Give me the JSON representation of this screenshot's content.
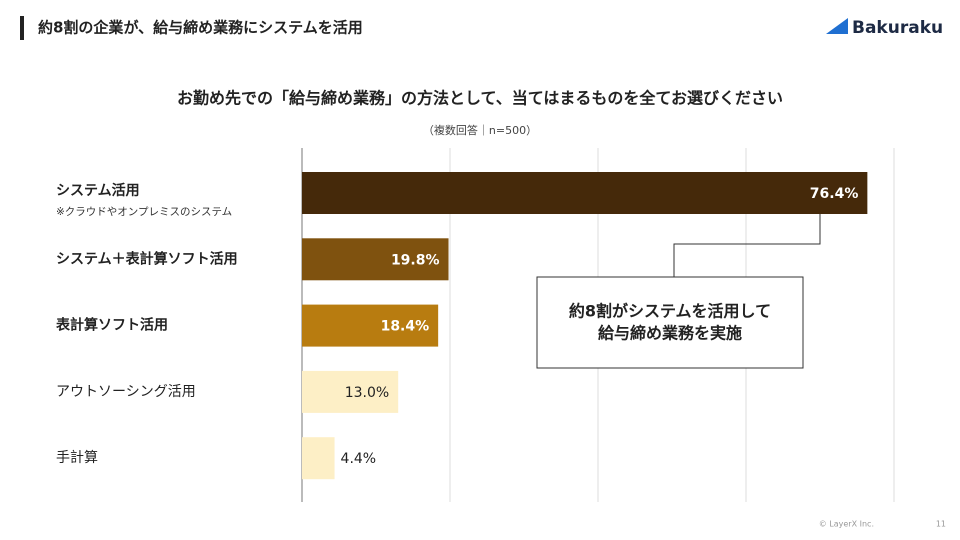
{
  "header": {
    "title": "約8割の企業が、給与締め業務にシステムを活用",
    "logo": "Bakuraku"
  },
  "chart_data": {
    "type": "bar",
    "orientation": "horizontal",
    "title": "お勤め先での「給与締め業務」の方法として、当てはまるものを全てお選びください",
    "subtitle": "（複数回答｜n=500）",
    "categories": [
      "システム活用",
      "システム＋表計算ソフト活用",
      "表計算ソフト活用",
      "アウトソーシング活用",
      "手計算"
    ],
    "category_note": "※クラウドやオンプレミスのシステム",
    "values": [
      76.4,
      19.8,
      18.4,
      13.0,
      4.4
    ],
    "value_labels": [
      "76.4%",
      "19.8%",
      "18.4%",
      "13.0%",
      "4.4%"
    ],
    "colors": [
      "#45290a",
      "#7f520f",
      "#b87c10",
      "#fdefc6",
      "#fdefc6"
    ],
    "xlim": [
      0,
      80
    ],
    "xticks": [
      0,
      20,
      40,
      60,
      80
    ],
    "grid": true,
    "annotation": [
      "約8割がシステムを活用して",
      "給与締め業務を実施"
    ]
  },
  "footer": {
    "copyright": "© LayerX Inc.",
    "page": "11"
  }
}
